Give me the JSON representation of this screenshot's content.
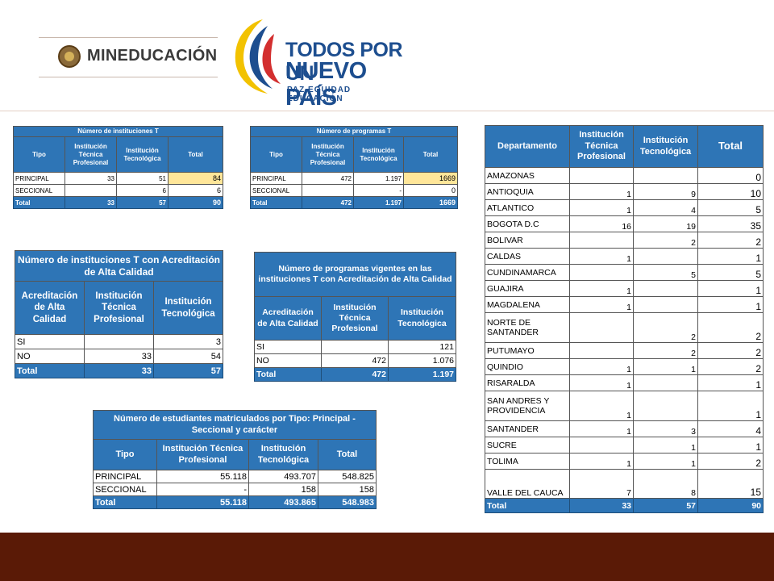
{
  "logos": {
    "mineducacion": "MINEDUCACIÓN",
    "todos_line1": "TODOS POR UN",
    "todos_line2": "NUEVO PAÍS",
    "todos_line3": "PAZ  EQUIDAD  EDUCACIÓN"
  },
  "table_instituciones": {
    "title": "Número de instituciones T",
    "headers": [
      "Tipo",
      "Institución Técnica Profesional",
      "Institución Tecnológica",
      "Total"
    ],
    "rows": [
      [
        "PRINCIPAL",
        "33",
        "51",
        "84"
      ],
      [
        "SECCIONAL",
        "",
        "6",
        "6"
      ]
    ],
    "total": [
      "Total",
      "33",
      "57",
      "90"
    ]
  },
  "table_programas": {
    "title": "Número de programas T",
    "headers": [
      "Tipo",
      "Institución Técnica Profesional",
      "Institución Tecnológica",
      "Total"
    ],
    "rows": [
      [
        "PRINCIPAL",
        "472",
        "1.197",
        "1669"
      ],
      [
        "SECCIONAL",
        "",
        "-",
        "0"
      ]
    ],
    "total": [
      "Total",
      "472",
      "1.197",
      "1669"
    ]
  },
  "table_acreditacion_inst": {
    "title": "Número de instituciones T con Acreditación de Alta Calidad",
    "headers": [
      "Acreditación de Alta Calidad",
      "Institución Técnica Profesional",
      "Institución Tecnológica"
    ],
    "rows": [
      [
        "SI",
        "",
        "3"
      ],
      [
        "NO",
        "33",
        "54"
      ]
    ],
    "total": [
      "Total",
      "33",
      "57"
    ]
  },
  "table_acreditacion_prog": {
    "title": "Número de programas vigentes en las instituciones T con Acreditación de Alta Calidad",
    "headers": [
      "Acreditación de Alta Calidad",
      "Institución Técnica Profesional",
      "Institución Tecnológica"
    ],
    "rows": [
      [
        "SI",
        "",
        "121"
      ],
      [
        "NO",
        "472",
        "1.076"
      ]
    ],
    "total": [
      "Total",
      "472",
      "1.197"
    ]
  },
  "table_estudiantes": {
    "title": "Número de estudiantes matriculados por Tipo: Principal - Seccional y carácter",
    "headers": [
      "Tipo",
      "Institución Técnica Profesional",
      "Institución Tecnológica",
      "Total"
    ],
    "rows": [
      [
        "PRINCIPAL",
        "55.118",
        "493.707",
        "548.825"
      ],
      [
        "SECCIONAL",
        "-",
        "158",
        "158"
      ]
    ],
    "total": [
      "Total",
      "55.118",
      "493.865",
      "548.983"
    ]
  },
  "table_departamentos": {
    "headers": [
      "Departamento",
      "Institución Técnica Profesional",
      "Institución Tecnológica",
      "Total"
    ],
    "rows": [
      [
        "AMAZONAS",
        "",
        "",
        "0"
      ],
      [
        "ANTIOQUIA",
        "1",
        "9",
        "10"
      ],
      [
        "ATLANTICO",
        "1",
        "4",
        "5"
      ],
      [
        "BOGOTA D.C",
        "16",
        "19",
        "35"
      ],
      [
        "BOLIVAR",
        "",
        "2",
        "2"
      ],
      [
        "CALDAS",
        "1",
        "",
        "1"
      ],
      [
        "CUNDINAMARCA",
        "",
        "5",
        "5"
      ],
      [
        "GUAJIRA",
        "1",
        "",
        "1"
      ],
      [
        "MAGDALENA",
        "1",
        "",
        "1"
      ],
      [
        "NORTE DE SANTANDER",
        "",
        "2",
        "2"
      ],
      [
        "PUTUMAYO",
        "",
        "2",
        "2"
      ],
      [
        "QUINDIO",
        "1",
        "1",
        "2"
      ],
      [
        "RISARALDA",
        "1",
        "",
        "1"
      ],
      [
        "SAN ANDRES Y PROVIDENCIA",
        "1",
        "",
        "1"
      ],
      [
        "SANTANDER",
        "1",
        "3",
        "4"
      ],
      [
        "SUCRE",
        "",
        "1",
        "1"
      ],
      [
        "TOLIMA",
        "1",
        "1",
        "2"
      ],
      [
        "VALLE DEL CAUCA",
        "7",
        "8",
        "15"
      ]
    ],
    "total": [
      "Total",
      "33",
      "57",
      "90"
    ]
  }
}
